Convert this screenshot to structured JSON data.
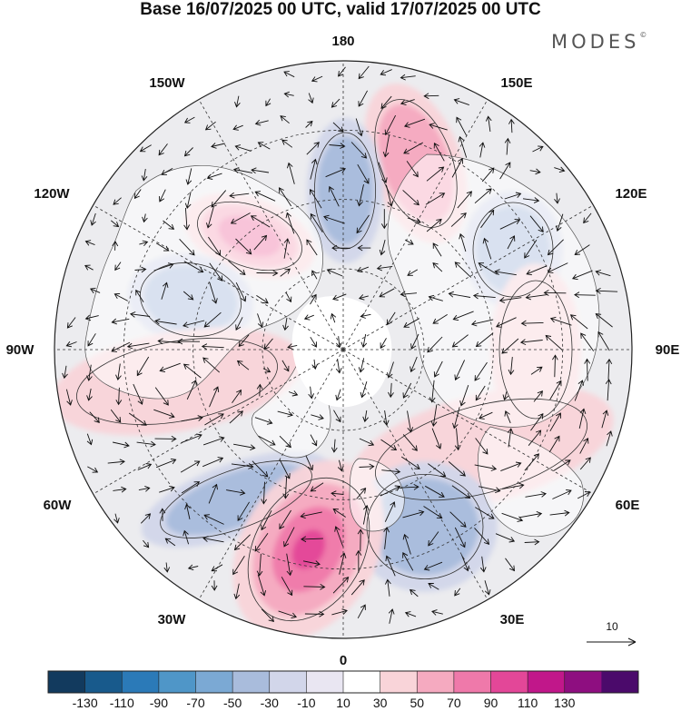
{
  "title": "Base 16/07/2025 00 UTC, valid 17/07/2025 00 UTC",
  "brand": "MODES",
  "brand_mark": "©",
  "longitude_labels": [
    "180",
    "150E",
    "120E",
    "90E",
    "60E",
    "30E",
    "0",
    "30W",
    "60W",
    "90W",
    "120W",
    "150W"
  ],
  "vector_reference": {
    "label": "10"
  },
  "colorbar": {
    "levels": [
      "-130",
      "-110",
      "-90",
      "-70",
      "-50",
      "-30",
      "-10",
      "10",
      "30",
      "50",
      "70",
      "90",
      "110",
      "130"
    ],
    "colors": [
      "#123a5e",
      "#185a8c",
      "#2b7ab8",
      "#4f96c8",
      "#7ba9d4",
      "#a9bcdc",
      "#d2d6ea",
      "#e9e6f2",
      "#ffffff",
      "#f9d4d9",
      "#f5aac0",
      "#ef79aa",
      "#e34798",
      "#c1178a",
      "#8e0e80",
      "#4b0a6b"
    ]
  },
  "map": {
    "projection": "north polar stereographic",
    "land_color": "#ffffff",
    "anomaly_centers": [
      {
        "name": "anomaly-positive-bering",
        "sign": "positive",
        "strength": 2
      },
      {
        "name": "anomaly-negative-chukchi",
        "sign": "negative",
        "strength": 2
      },
      {
        "name": "anomaly-positive-alaska",
        "sign": "positive",
        "strength": 3
      },
      {
        "name": "anomaly-negative-siberia",
        "sign": "negative",
        "strength": 2
      },
      {
        "name": "anomaly-negative-canada",
        "sign": "negative",
        "strength": 2
      },
      {
        "name": "anomaly-positive-siberia-east",
        "sign": "positive",
        "strength": 1
      },
      {
        "name": "anomaly-positive-canada-south",
        "sign": "positive",
        "strength": 1
      },
      {
        "name": "anomaly-positive-europe-east",
        "sign": "positive",
        "strength": 1
      },
      {
        "name": "anomaly-negative-greenland-sea",
        "sign": "negative",
        "strength": 2
      },
      {
        "name": "anomaly-negative-north-atlantic",
        "sign": "negative",
        "strength": 2
      },
      {
        "name": "anomaly-positive-north-atlantic",
        "sign": "positive",
        "strength": 4
      }
    ]
  }
}
